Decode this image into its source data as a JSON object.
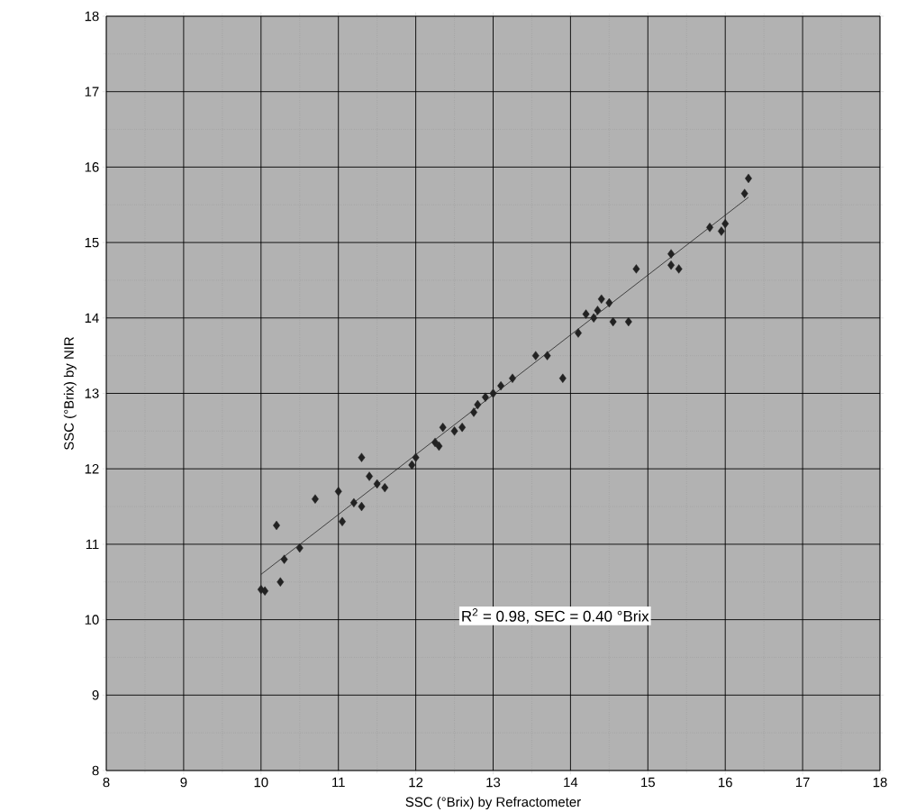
{
  "chart_data": {
    "type": "scatter",
    "xlabel": "SSC (°Brix) by Refractometer",
    "ylabel": "SSC (°Brix) by NIR",
    "annotations": [
      "R$^{2}$ = 0.98, SEC = 0.40 °Brix"
    ],
    "xlim": [
      8,
      18
    ],
    "ylim": [
      8,
      18
    ],
    "xticks": [
      8,
      9,
      10,
      11,
      12,
      13,
      14,
      15,
      16,
      17,
      18
    ],
    "yticks": [
      8,
      9,
      10,
      11,
      12,
      13,
      14,
      15,
      16,
      17,
      18
    ],
    "grid": true,
    "marker": "diamond",
    "series": [
      {
        "color": "#222222",
        "x": [
          10.0,
          10.05,
          10.2,
          10.25,
          10.3,
          10.5,
          10.7,
          11.0,
          11.05,
          11.2,
          11.3,
          11.3,
          11.4,
          11.5,
          11.6,
          11.95,
          12.0,
          12.25,
          12.3,
          12.35,
          12.5,
          12.6,
          12.75,
          12.8,
          12.9,
          13.0,
          13.1,
          13.25,
          13.55,
          13.7,
          13.9,
          14.1,
          14.2,
          14.3,
          14.35,
          14.4,
          14.5,
          14.55,
          14.75,
          14.85,
          15.3,
          15.3,
          15.4,
          15.8,
          15.95,
          16.0,
          16.25,
          16.3
        ],
        "values": [
          10.4,
          10.38,
          11.25,
          10.5,
          10.8,
          10.95,
          11.6,
          11.7,
          11.3,
          11.55,
          12.15,
          11.5,
          11.9,
          11.8,
          11.75,
          12.05,
          12.15,
          12.35,
          12.3,
          12.55,
          12.5,
          12.55,
          12.75,
          12.85,
          12.95,
          13.0,
          13.1,
          13.2,
          13.5,
          13.5,
          13.2,
          13.8,
          14.05,
          14.0,
          14.1,
          14.25,
          14.2,
          13.95,
          13.95,
          14.65,
          14.85,
          14.7,
          14.65,
          15.2,
          15.15,
          15.25,
          15.65,
          15.85
        ]
      },
      {
        "type": "line",
        "marker": "none",
        "color": "#222222",
        "x": [
          10.0,
          16.3
        ],
        "values": [
          10.6,
          15.6
        ]
      }
    ]
  }
}
